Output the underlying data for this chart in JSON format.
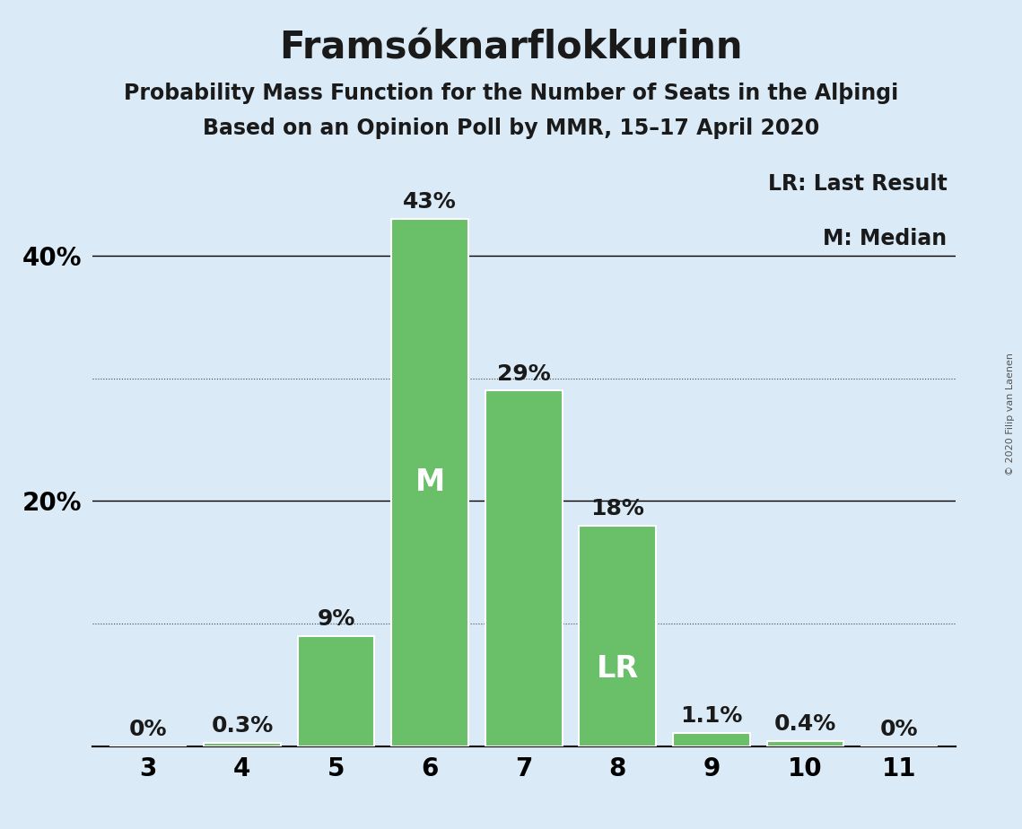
{
  "title": "Framsóknarflokkurinn",
  "subtitle1": "Probability Mass Function for the Number of Seats in the Alþingi",
  "subtitle2": "Based on an Opinion Poll by MMR, 15–17 April 2020",
  "watermark": "© 2020 Filip van Laenen",
  "legend_lr": "LR: Last Result",
  "legend_m": "M: Median",
  "categories": [
    3,
    4,
    5,
    6,
    7,
    8,
    9,
    10,
    11
  ],
  "values": [
    0.0,
    0.3,
    9.0,
    43.0,
    29.0,
    18.0,
    1.1,
    0.4,
    0.0
  ],
  "bar_labels": [
    "0%",
    "0.3%",
    "9%",
    "43%",
    "29%",
    "18%",
    "1.1%",
    "0.4%",
    "0%"
  ],
  "median_bar": 6,
  "lr_bar": 8,
  "bar_color": "#6abf69",
  "bar_edge_color": "white",
  "background_color": "#daeaf6",
  "text_color": "#1a1a1a",
  "ylim": [
    0,
    47
  ],
  "solid_gridlines": [
    20,
    40
  ],
  "dotted_gridlines": [
    10,
    30
  ],
  "title_fontsize": 30,
  "subtitle_fontsize": 17,
  "tick_fontsize": 20,
  "bar_label_fontsize": 18,
  "inner_label_fontsize": 24,
  "legend_fontsize": 17,
  "watermark_fontsize": 8
}
